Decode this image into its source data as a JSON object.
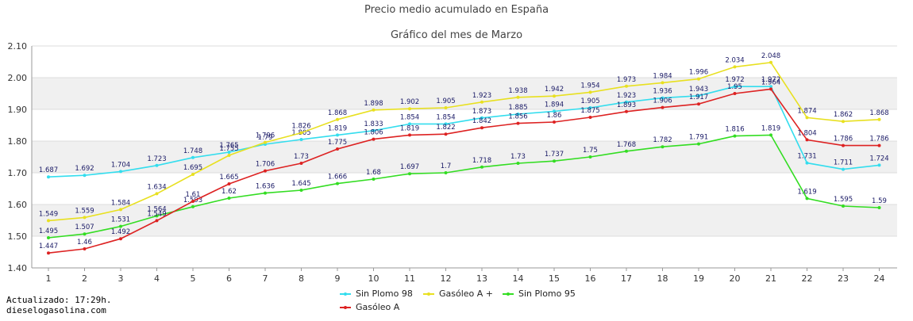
{
  "chart_data": {
    "type": "line",
    "title": "Precio medio acumulado en España",
    "subtitle": "Gráfico del mes de Marzo",
    "x": [
      1,
      2,
      3,
      4,
      5,
      6,
      7,
      8,
      9,
      10,
      11,
      12,
      13,
      14,
      15,
      16,
      17,
      18,
      19,
      20,
      21,
      22,
      23,
      24
    ],
    "x_tick_labels": [
      "1",
      "2",
      "3",
      "4",
      "5",
      "6",
      "7",
      "8",
      "9",
      "10",
      "11",
      "12",
      "13",
      "14",
      "15",
      "16",
      "17",
      "18",
      "19",
      "20",
      "21",
      "22",
      "23",
      "24"
    ],
    "ylim": [
      1.4,
      2.1
    ],
    "y_ticks": [
      1.4,
      1.5,
      1.6,
      1.7,
      1.8,
      1.9,
      2.0,
      2.1
    ],
    "y_tick_labels": [
      "1.40",
      "1.50",
      "1.60",
      "1.70",
      "1.80",
      "1.90",
      "2.00",
      "2.10"
    ],
    "grid": "alternating horizontal bands",
    "legend_position": "bottom-center",
    "series": [
      {
        "name": "Sin Plomo 98",
        "color": "#33ddee",
        "values": [
          1.687,
          1.692,
          1.704,
          1.723,
          1.748,
          1.765,
          1.79,
          1.805,
          1.819,
          1.833,
          1.854,
          1.854,
          1.873,
          1.885,
          1.894,
          1.905,
          1.923,
          1.936,
          1.943,
          1.972,
          1.972,
          1.731,
          1.711,
          1.724
        ],
        "labels": [
          "1.687",
          "1.692",
          "1.704",
          "1.723",
          "1.748",
          "1.765",
          "1.79",
          "1.805",
          "1.819",
          "1.833",
          "1.854",
          "1.854",
          "1.873",
          "1.885",
          "1.894",
          "1.905",
          "1.923",
          "1.936",
          "1.943",
          "1.972",
          "1.972",
          "1.731",
          "1.711",
          "1.724"
        ]
      },
      {
        "name": "Gasóleo A +",
        "color": "#e8e020",
        "values": [
          1.549,
          1.559,
          1.584,
          1.634,
          1.695,
          1.755,
          1.796,
          1.826,
          1.868,
          1.898,
          1.902,
          1.905,
          1.923,
          1.938,
          1.942,
          1.954,
          1.973,
          1.984,
          1.996,
          2.034,
          2.048,
          1.874,
          1.862,
          1.868
        ],
        "labels": [
          "1.549",
          "1.559",
          "1.584",
          "1.634",
          "1.695",
          "1.755",
          "1.796",
          "1.826",
          "1.868",
          "1.898",
          "1.902",
          "1.905",
          "1.923",
          "1.938",
          "1.942",
          "1.954",
          "1.973",
          "1.984",
          "1.996",
          "2.034",
          "2.048",
          "1.874",
          "1.862",
          "1.868"
        ]
      },
      {
        "name": "Sin Plomo 95",
        "color": "#33dd22",
        "values": [
          1.495,
          1.507,
          1.531,
          1.564,
          1.593,
          1.62,
          1.636,
          1.645,
          1.666,
          1.68,
          1.697,
          1.7,
          1.718,
          1.73,
          1.737,
          1.75,
          1.768,
          1.782,
          1.791,
          1.816,
          1.819,
          1.619,
          1.595,
          1.59
        ],
        "labels": [
          "1.495",
          "1.507",
          "1.531",
          "1.564",
          "1.593",
          "1.62",
          "1.636",
          "1.645",
          "1.666",
          "1.68",
          "1.697",
          "1.7",
          "1.718",
          "1.73",
          "1.737",
          "1.75",
          "1.768",
          "1.782",
          "1.791",
          "1.816",
          "1.819",
          "1.619",
          "1.595",
          "1.59"
        ]
      },
      {
        "name": "Gasóleo A",
        "color": "#dd2222",
        "values": [
          1.447,
          1.46,
          1.492,
          1.549,
          1.61,
          1.665,
          1.706,
          1.73,
          1.775,
          1.806,
          1.819,
          1.822,
          1.842,
          1.856,
          1.86,
          1.875,
          1.893,
          1.906,
          1.917,
          1.95,
          1.964,
          1.804,
          1.786,
          1.786
        ],
        "labels": [
          "1.447",
          "1.46",
          "1.492",
          "1.549",
          "1.61",
          "1.665",
          "1.706",
          "1.73",
          "1.775",
          "1.806",
          "1.819",
          "1.822",
          "1.842",
          "1.856",
          "1.86",
          "1.875",
          "1.893",
          "1.906",
          "1.917",
          "1.95",
          "1.964",
          "1.804",
          "1.786",
          "1.786"
        ]
      }
    ]
  },
  "footer": {
    "updated": "Actualizado: 17:29h.",
    "site": "dieselogasolina.com"
  }
}
